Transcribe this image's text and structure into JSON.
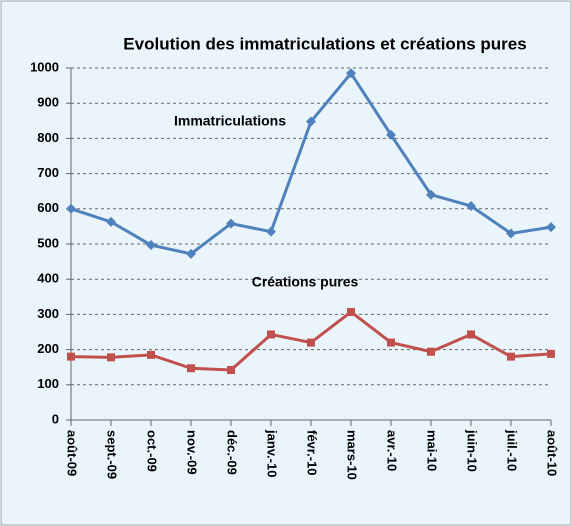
{
  "chart_data": {
    "type": "line",
    "title": "Evolution des immatriculations  et créations pures",
    "categories": [
      "août-09",
      "sept.-09",
      "oct.-09",
      "nov.-09",
      "déc.-09",
      "janv.-10",
      "févr.-10",
      "mars-10",
      "avr.-10",
      "mai-10",
      "juin-10",
      "juil.-10",
      "août-10"
    ],
    "series": [
      {
        "name": "Immatriculations",
        "color": "#4f81bd",
        "values": [
          600,
          563,
          497,
          472,
          558,
          535,
          848,
          985,
          810,
          640,
          608,
          530,
          548
        ]
      },
      {
        "name": "Créations pures",
        "color": "#c0504d",
        "values": [
          180,
          178,
          185,
          147,
          142,
          243,
          220,
          307,
          220,
          194,
          243,
          180,
          188
        ]
      }
    ],
    "ylim": [
      0,
      1000
    ],
    "yticks": [
      0,
      100,
      200,
      300,
      400,
      500,
      600,
      700,
      800,
      900,
      1000
    ],
    "grid": true
  }
}
